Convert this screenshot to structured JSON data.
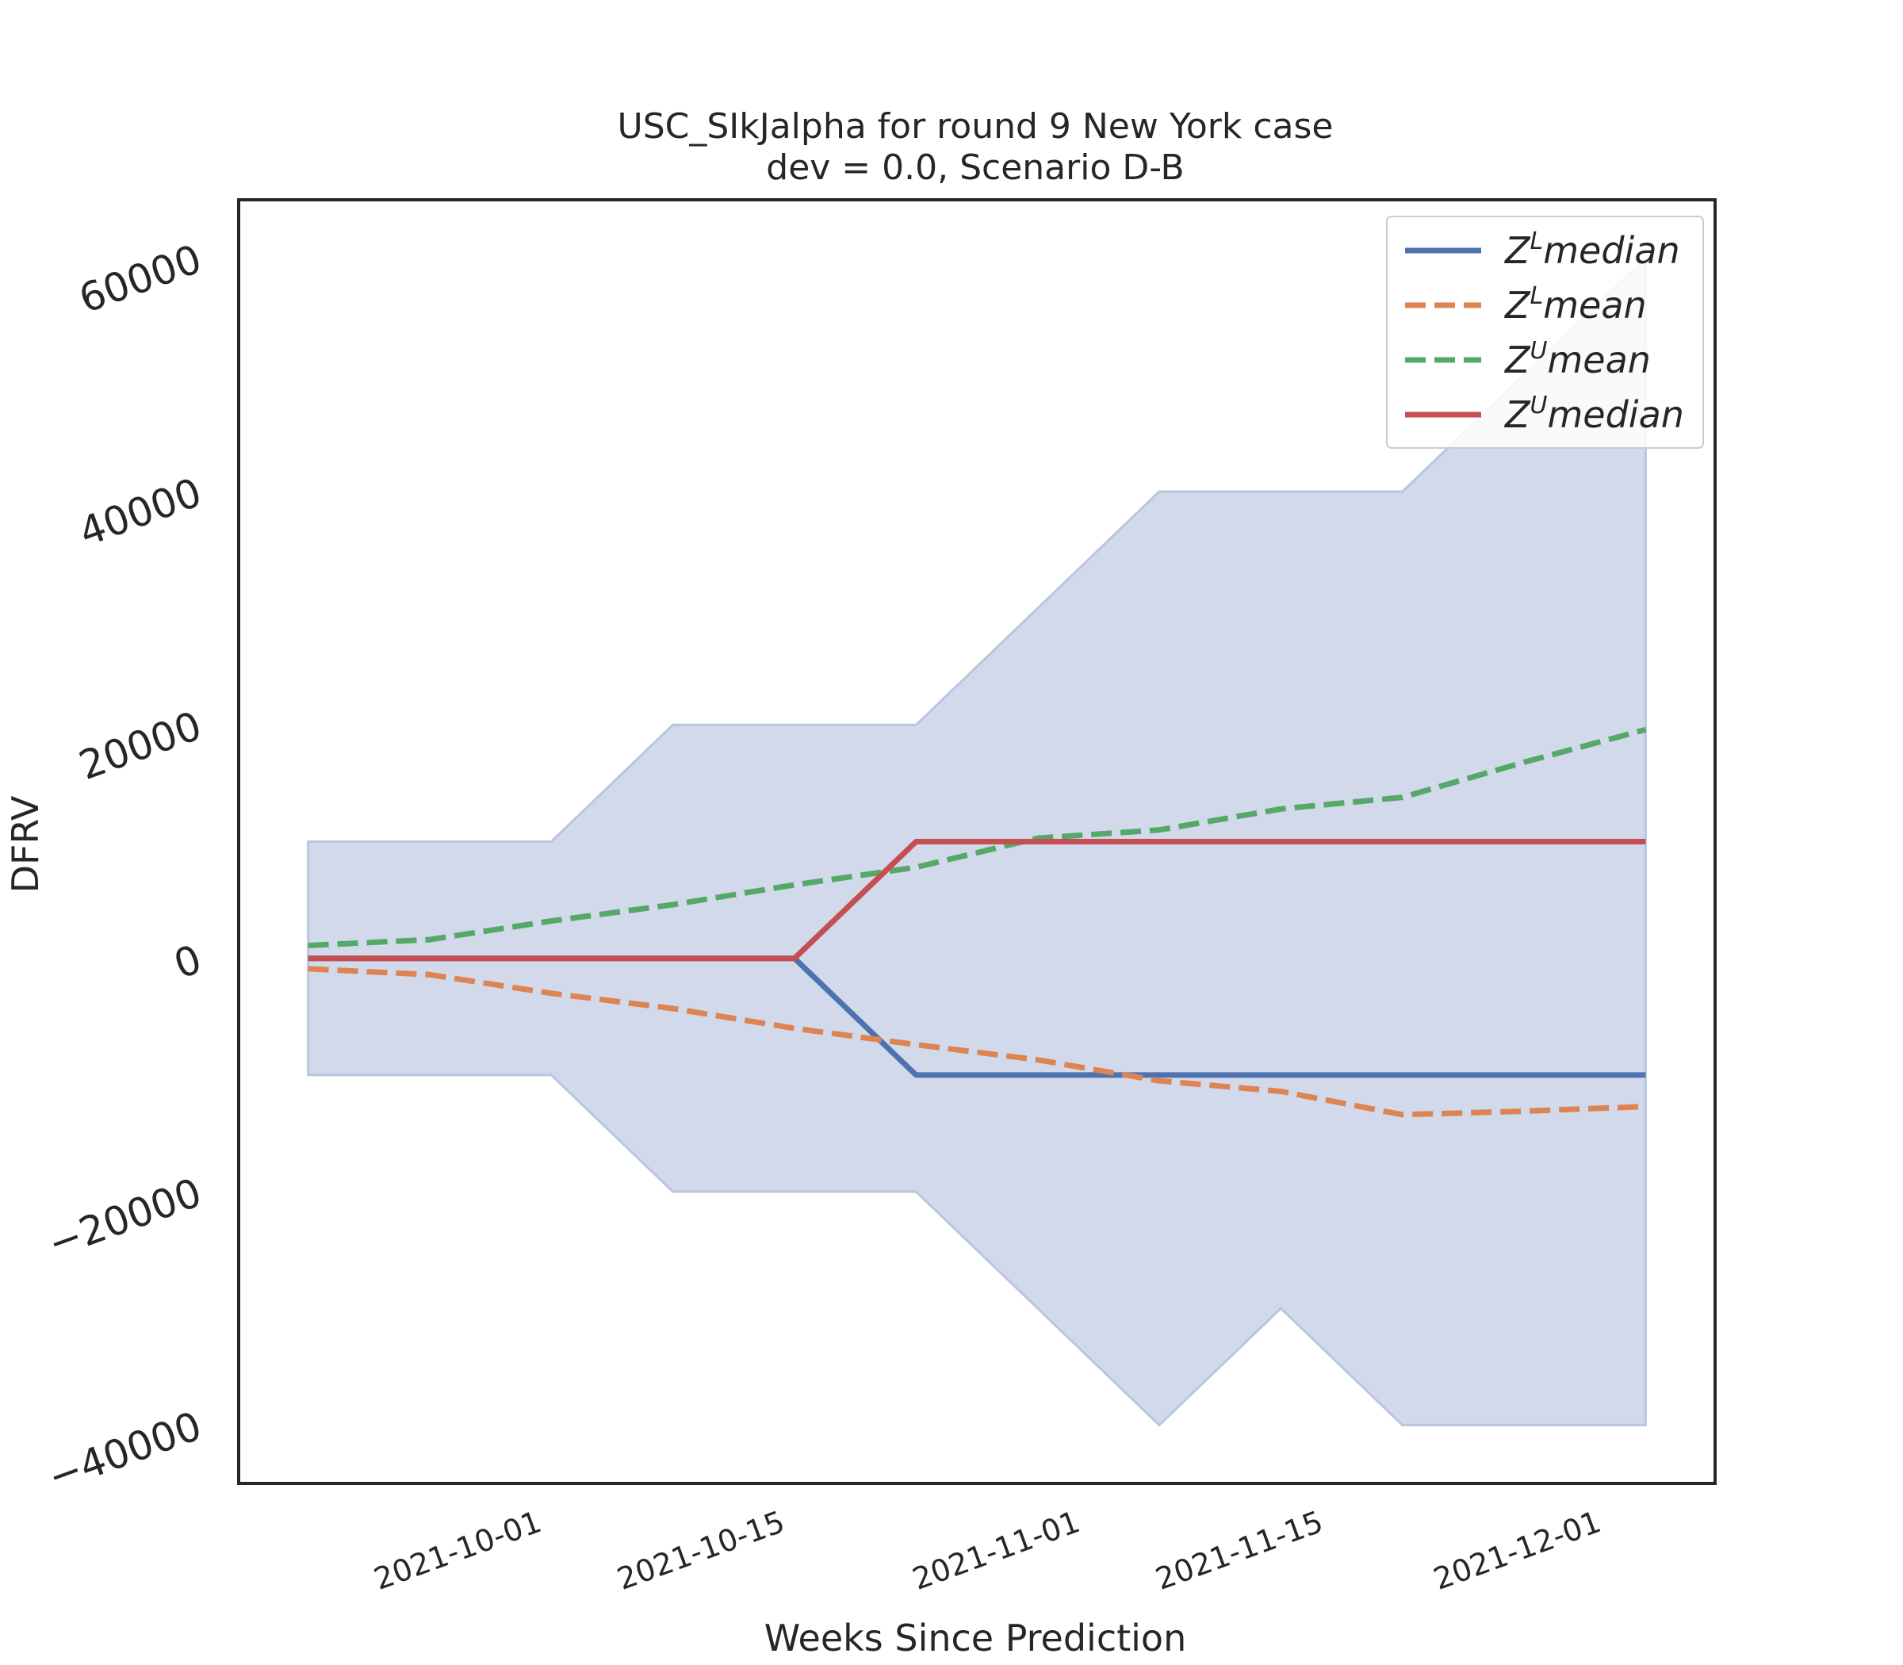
{
  "chart_data": {
    "type": "line",
    "title": "USC_SIkJalpha for round 9 New York case",
    "subtitle": "dev = 0.0, Scenario D-B",
    "xlabel": "Weeks Since Prediction",
    "ylabel": "DFRV",
    "x": [
      "2021-09-18",
      "2021-09-25",
      "2021-10-02",
      "2021-10-09",
      "2021-10-16",
      "2021-10-23",
      "2021-10-30",
      "2021-11-06",
      "2021-11-13",
      "2021-11-20",
      "2021-11-27",
      "2021-12-04"
    ],
    "xlim": [
      "2021-09-14",
      "2021-12-08"
    ],
    "xticks": [
      "2021-10-01",
      "2021-10-15",
      "2021-11-01",
      "2021-11-15",
      "2021-12-01"
    ],
    "ylim": [
      -45000,
      65000
    ],
    "yticks": [
      -40000,
      -20000,
      0,
      20000,
      40000,
      60000
    ],
    "ytick_labels": [
      "−40000",
      "−20000",
      "0",
      "20000",
      "40000",
      "60000"
    ],
    "grid": false,
    "legend_position": "top-right",
    "band": {
      "color": "#d1d9ea",
      "edge_color": "#b9c6e0",
      "lower": [
        -10000,
        -10000,
        -10000,
        -20000,
        -20000,
        -20000,
        -30000,
        -40000,
        -30000,
        -40000,
        -40000,
        -40000
      ],
      "upper": [
        10000,
        10000,
        10000,
        20000,
        20000,
        20000,
        30000,
        40000,
        40000,
        40000,
        50000,
        60000
      ]
    },
    "series": [
      {
        "name_base": "Z",
        "name_sup": "L",
        "name_rest": "median",
        "color": "#4c72b0",
        "dash": "solid",
        "values": [
          0,
          0,
          0,
          0,
          0,
          -10000,
          -10000,
          -10000,
          -10000,
          -10000,
          -10000,
          -10000
        ]
      },
      {
        "name_base": "Z",
        "name_sup": "L",
        "name_rest": "mean",
        "color": "#dd8452",
        "dash": "dashed",
        "values": [
          -900,
          -1400,
          -3000,
          -4300,
          -6000,
          -7400,
          -8700,
          -10500,
          -11400,
          -13400,
          -13100,
          -12700
        ]
      },
      {
        "name_base": "Z",
        "name_sup": "U",
        "name_rest": "mean",
        "color": "#55a868",
        "dash": "dashed",
        "values": [
          1100,
          1600,
          3200,
          4600,
          6300,
          7800,
          10300,
          11000,
          12800,
          13800,
          16800,
          19600
        ]
      },
      {
        "name_base": "Z",
        "name_sup": "U",
        "name_rest": "median",
        "color": "#c44e52",
        "dash": "solid",
        "values": [
          0,
          0,
          0,
          0,
          0,
          10000,
          10000,
          10000,
          10000,
          10000,
          10000,
          10000
        ]
      }
    ]
  }
}
